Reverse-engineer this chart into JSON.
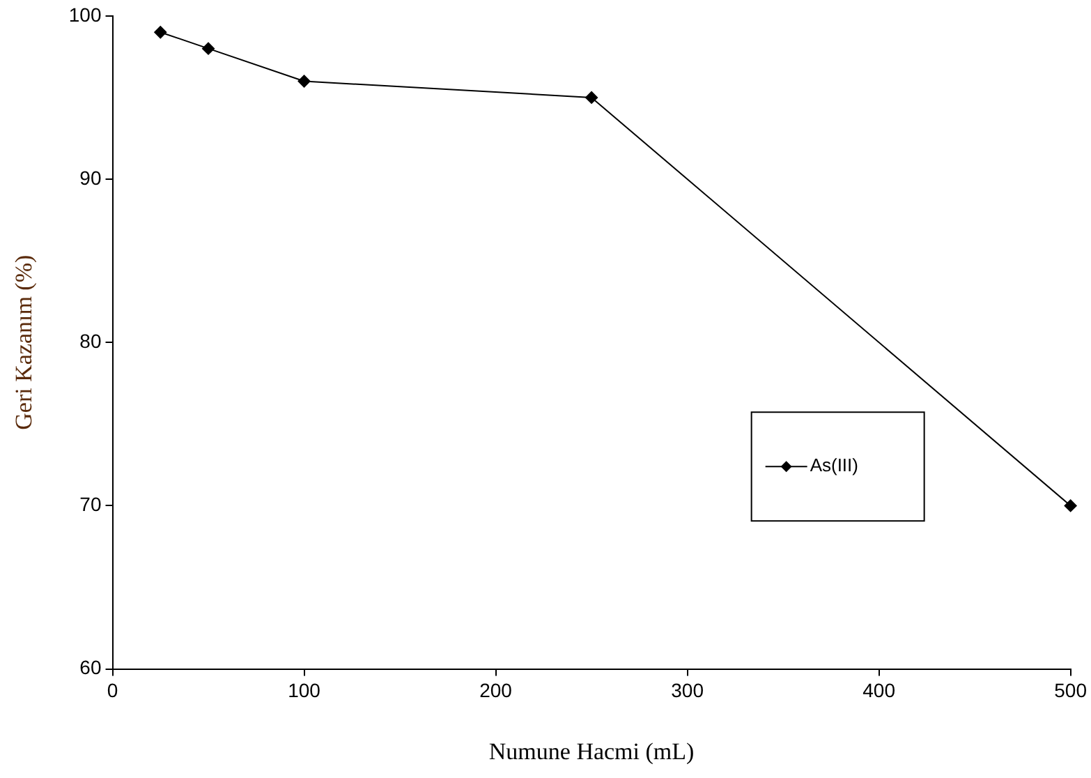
{
  "chart_data": {
    "type": "line",
    "xlabel": "Numune Hacmi (mL)",
    "ylabel": "Geri Kazanım (%)",
    "x": [
      25,
      50,
      100,
      250,
      500
    ],
    "series": [
      {
        "name": "As(III)",
        "color": "#000000",
        "values": [
          99,
          98,
          96,
          95,
          70
        ]
      }
    ],
    "xlim": [
      0,
      500
    ],
    "xticks": [
      0,
      100,
      200,
      300,
      400,
      500
    ],
    "ylim": [
      60,
      100
    ],
    "yticks": [
      60,
      70,
      80,
      90,
      100
    ],
    "grid": false,
    "legend": "right",
    "marker": "diamond",
    "line_style": "solid"
  }
}
